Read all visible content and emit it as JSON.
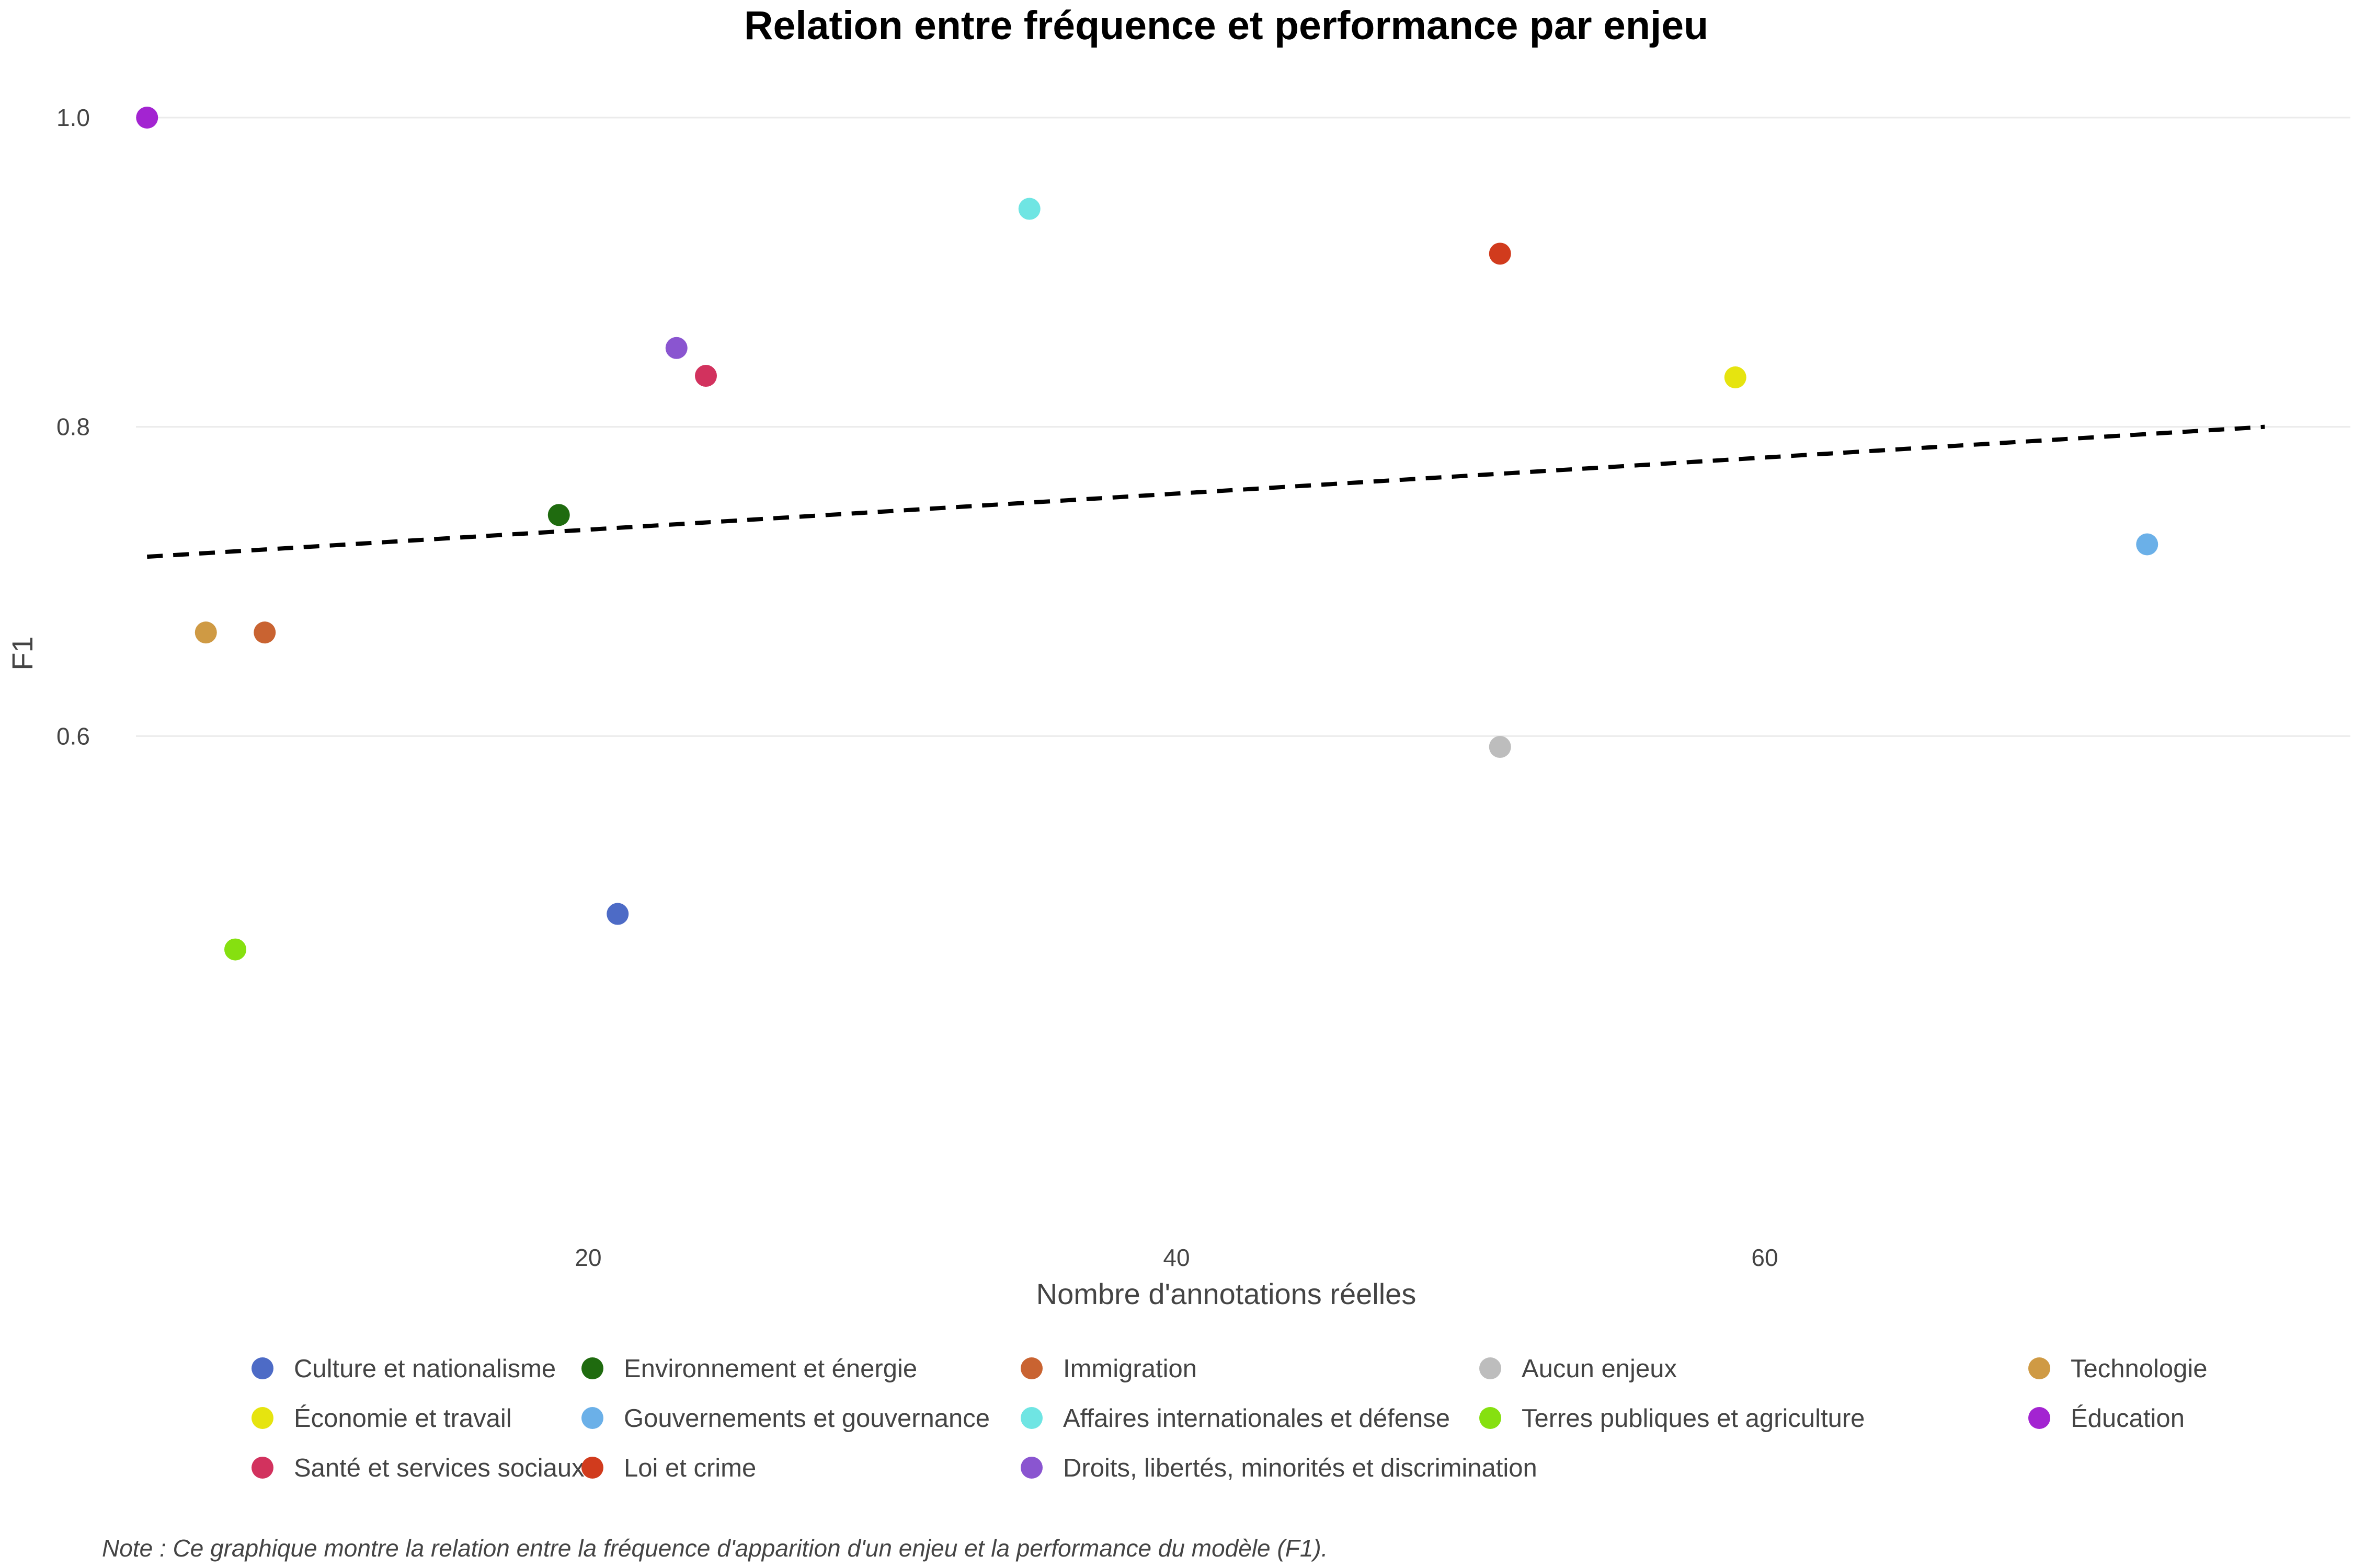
{
  "chart_data": {
    "type": "scatter",
    "title": "Relation entre fréquence et performance par enjeu",
    "xlabel": "Nombre d'annotations réelles",
    "ylabel": "F1",
    "xlim": [
      0,
      80
    ],
    "ylim": [
      0.4,
      1.0
    ],
    "xticks": [
      20,
      40,
      60
    ],
    "yticks": [
      0.6,
      0.8,
      1.0
    ],
    "xtick_labels": [
      "20",
      "40",
      "60"
    ],
    "ytick_labels": [
      "0.6",
      "0.8",
      "1.0"
    ],
    "grid": true,
    "legend_position": "bottom",
    "trendline": {
      "style": "dashed",
      "color": "#000000",
      "x": [
        5,
        77
      ],
      "y": [
        0.716,
        0.8
      ]
    },
    "series": [
      {
        "name": "Culture et nationalisme",
        "color": "#4d6bc6",
        "points": [
          {
            "x": 21,
            "y": 0.485
          }
        ]
      },
      {
        "name": "Environnement et énergie",
        "color": "#1f6b0f",
        "points": [
          {
            "x": 19,
            "y": 0.743
          }
        ]
      },
      {
        "name": "Immigration",
        "color": "#c96331",
        "points": [
          {
            "x": 9,
            "y": 0.667
          }
        ]
      },
      {
        "name": "Aucun enjeux",
        "color": "#bdbdbd",
        "points": [
          {
            "x": 51,
            "y": 0.593
          }
        ]
      },
      {
        "name": "Technologie",
        "color": "#cf9a44",
        "points": [
          {
            "x": 7,
            "y": 0.667
          }
        ]
      },
      {
        "name": "Économie et travail",
        "color": "#e6e40f",
        "points": [
          {
            "x": 59,
            "y": 0.832
          }
        ]
      },
      {
        "name": "Gouvernements et gouvernance",
        "color": "#6bb0e8",
        "points": [
          {
            "x": 73,
            "y": 0.724
          }
        ]
      },
      {
        "name": "Affaires internationales et défense",
        "color": "#6fe5e3",
        "points": [
          {
            "x": 35,
            "y": 0.941
          }
        ]
      },
      {
        "name": "Terres publiques et agriculture",
        "color": "#86e010",
        "points": [
          {
            "x": 8,
            "y": 0.462
          }
        ]
      },
      {
        "name": "Éducation",
        "color": "#a324d1",
        "points": [
          {
            "x": 5,
            "y": 1.0
          }
        ]
      },
      {
        "name": "Santé et services sociaux",
        "color": "#d2325e",
        "points": [
          {
            "x": 24,
            "y": 0.833
          }
        ]
      },
      {
        "name": "Loi et crime",
        "color": "#d13b1d",
        "points": [
          {
            "x": 51,
            "y": 0.912
          }
        ]
      },
      {
        "name": "Droits, libertés, minorités et discrimination",
        "color": "#8a55d0",
        "points": [
          {
            "x": 23,
            "y": 0.851
          }
        ]
      }
    ]
  },
  "caption": "Note : Ce graphique montre la relation entre la fréquence d'apparition d'un enjeu et la performance du modèle (F1)."
}
